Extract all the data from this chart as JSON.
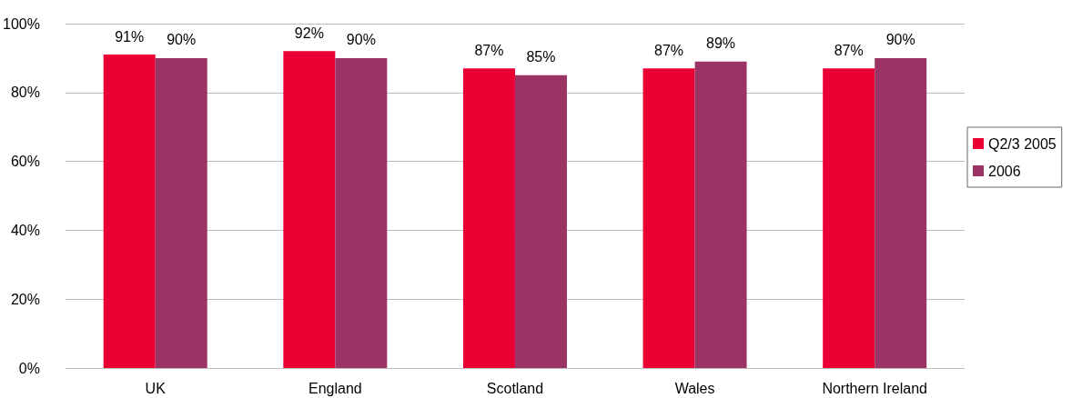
{
  "chart_data": {
    "type": "bar",
    "categories": [
      "UK",
      "England",
      "Scotland",
      "Wales",
      "Northern Ireland"
    ],
    "series": [
      {
        "name": "Q2/3 2005",
        "color": "#ea0033",
        "values": [
          91,
          92,
          87,
          87,
          87
        ],
        "value_labels": [
          "91%",
          "92%",
          "87%",
          "87%",
          "87%"
        ]
      },
      {
        "name": "2006",
        "color": "#9b3465",
        "values": [
          90,
          90,
          85,
          89,
          90
        ],
        "value_labels": [
          "90%",
          "90%",
          "85%",
          "89%",
          "90%"
        ]
      }
    ],
    "ylim": [
      0,
      100
    ],
    "yticks": [
      {
        "value": 0,
        "label": "0%"
      },
      {
        "value": 20,
        "label": "20%"
      },
      {
        "value": 40,
        "label": "40%"
      },
      {
        "value": 60,
        "label": "60%"
      },
      {
        "value": 80,
        "label": "80%"
      },
      {
        "value": 100,
        "label": "100%"
      }
    ],
    "grid": "y",
    "legend": "right"
  }
}
